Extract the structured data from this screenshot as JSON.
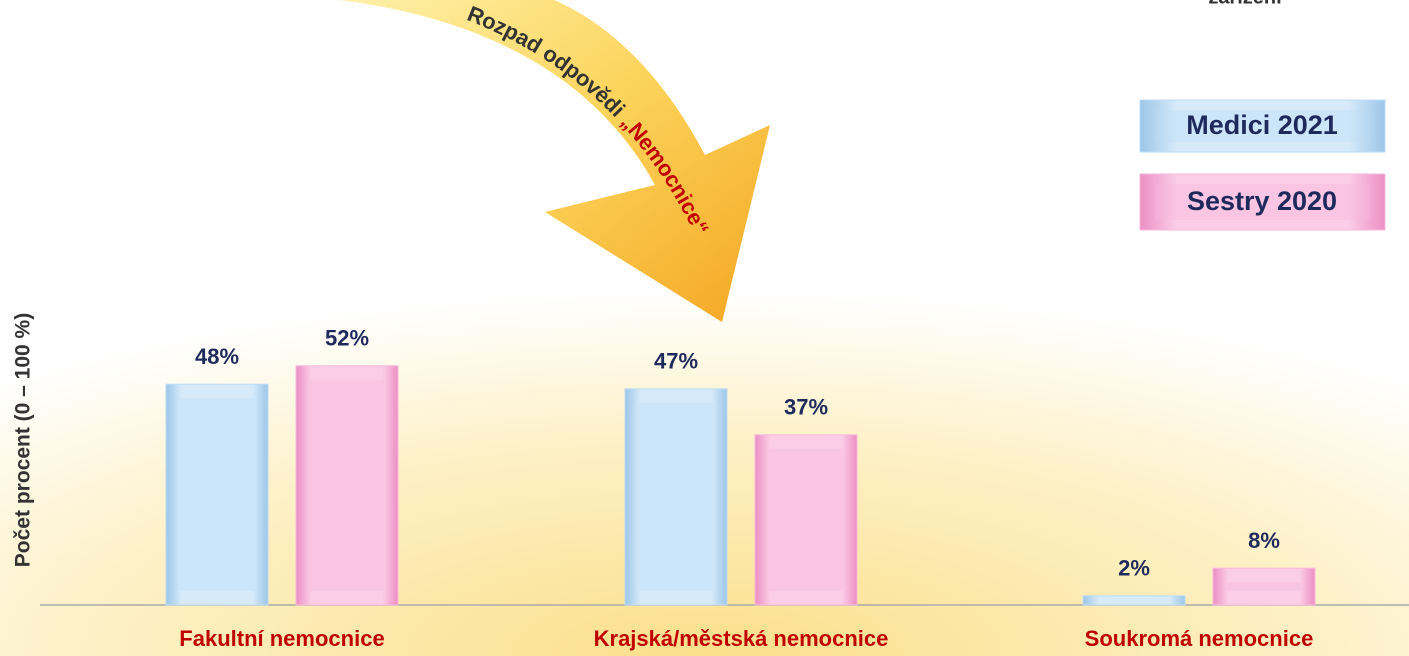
{
  "chart_data": {
    "type": "bar",
    "y_axis_label": "Počet procent  (0 – 100 %)",
    "top_text": "zařízení",
    "arrow_label": "Rozpad odpovědi",
    "arrow_label_highlight": "„Nemocnice“",
    "categories": [
      "Fakultní nemocnice",
      "Krajská/městská nemocnice",
      "Soukromá nemocnice"
    ],
    "series": [
      {
        "name": "Medici 2021",
        "color": "#bcdcf4",
        "values": [
          48,
          47,
          2
        ],
        "value_labels": [
          "48%",
          "47%",
          "2%"
        ]
      },
      {
        "name": "Sestry 2020",
        "color": "#f7b8dc",
        "values": [
          52,
          37,
          8
        ],
        "value_labels": [
          "52%",
          "37%",
          "8%"
        ]
      }
    ],
    "ylim": [
      0,
      100
    ]
  }
}
